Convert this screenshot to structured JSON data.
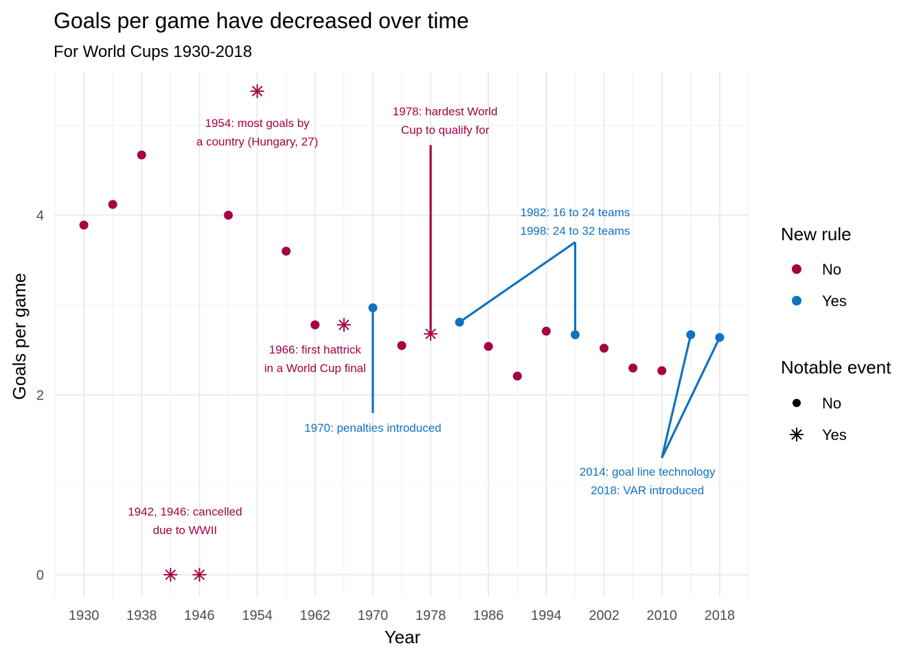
{
  "colors": {
    "no_rule": "#A50044",
    "yes_rule": "#1172C0"
  },
  "chart_data": {
    "type": "scatter",
    "title": "Goals per game have decreased over time",
    "subtitle": "For World Cups 1930-2018",
    "xlabel": "Year",
    "ylabel": "Goals per game",
    "xlim": [
      1926,
      2022
    ],
    "ylim": [
      -0.25,
      5.6
    ],
    "xticks": [
      1930,
      1938,
      1946,
      1954,
      1962,
      1970,
      1978,
      1986,
      1994,
      2002,
      2010,
      2018
    ],
    "yticks": [
      0,
      2,
      4
    ],
    "grid": true,
    "legend_position": "right",
    "legend": {
      "new_rule": {
        "title": "New rule",
        "items": [
          "No",
          "Yes"
        ]
      },
      "notable_event": {
        "title": "Notable event",
        "items": [
          "No",
          "Yes"
        ]
      }
    },
    "points": [
      {
        "year": 1930,
        "goals": 3.89,
        "new_rule": "No",
        "notable": "No"
      },
      {
        "year": 1934,
        "goals": 4.12,
        "new_rule": "No",
        "notable": "No"
      },
      {
        "year": 1938,
        "goals": 4.67,
        "new_rule": "No",
        "notable": "No"
      },
      {
        "year": 1942,
        "goals": 0,
        "new_rule": "No",
        "notable": "Yes"
      },
      {
        "year": 1946,
        "goals": 0,
        "new_rule": "No",
        "notable": "Yes"
      },
      {
        "year": 1950,
        "goals": 4.0,
        "new_rule": "No",
        "notable": "No"
      },
      {
        "year": 1954,
        "goals": 5.38,
        "new_rule": "No",
        "notable": "Yes"
      },
      {
        "year": 1958,
        "goals": 3.6,
        "new_rule": "No",
        "notable": "No"
      },
      {
        "year": 1962,
        "goals": 2.78,
        "new_rule": "No",
        "notable": "No"
      },
      {
        "year": 1966,
        "goals": 2.78,
        "new_rule": "No",
        "notable": "Yes"
      },
      {
        "year": 1970,
        "goals": 2.97,
        "new_rule": "Yes",
        "notable": "No"
      },
      {
        "year": 1974,
        "goals": 2.55,
        "new_rule": "No",
        "notable": "No"
      },
      {
        "year": 1978,
        "goals": 2.68,
        "new_rule": "No",
        "notable": "Yes"
      },
      {
        "year": 1982,
        "goals": 2.81,
        "new_rule": "Yes",
        "notable": "No"
      },
      {
        "year": 1986,
        "goals": 2.54,
        "new_rule": "No",
        "notable": "No"
      },
      {
        "year": 1990,
        "goals": 2.21,
        "new_rule": "No",
        "notable": "No"
      },
      {
        "year": 1994,
        "goals": 2.71,
        "new_rule": "No",
        "notable": "No"
      },
      {
        "year": 1998,
        "goals": 2.67,
        "new_rule": "Yes",
        "notable": "No"
      },
      {
        "year": 2002,
        "goals": 2.52,
        "new_rule": "No",
        "notable": "No"
      },
      {
        "year": 2006,
        "goals": 2.3,
        "new_rule": "No",
        "notable": "No"
      },
      {
        "year": 2010,
        "goals": 2.27,
        "new_rule": "No",
        "notable": "No"
      },
      {
        "year": 2014,
        "goals": 2.67,
        "new_rule": "Yes",
        "notable": "No"
      },
      {
        "year": 2018,
        "goals": 2.64,
        "new_rule": "Yes",
        "notable": "No"
      }
    ],
    "annotations": [
      {
        "lines": [
          "1954: most goals by",
          "a country (Hungary, 27)"
        ],
        "x": 1954,
        "y": 4.98,
        "color": "no_rule"
      },
      {
        "lines": [
          "1978: hardest World",
          "Cup to qualify for"
        ],
        "x": 1980,
        "y": 5.11,
        "color": "no_rule"
      },
      {
        "lines": [
          "1982: 16 to 24 teams",
          "1998: 24 to 32 teams"
        ],
        "x": 1998,
        "y": 3.99,
        "color": "yes_rule"
      },
      {
        "lines": [
          "1966: first hattrick",
          "in a World Cup final"
        ],
        "x": 1962,
        "y": 2.46,
        "color": "no_rule"
      },
      {
        "lines": [
          "1970: penalties introduced"
        ],
        "x": 1970,
        "y": 1.59,
        "color": "yes_rule"
      },
      {
        "lines": [
          "2014: goal line technology",
          "2018: VAR introduced"
        ],
        "x": 2008,
        "y": 1.1,
        "color": "yes_rule"
      },
      {
        "lines": [
          "1942, 1946: cancelled",
          "due to WWII"
        ],
        "x": 1944,
        "y": 0.66,
        "color": "no_rule"
      }
    ],
    "segments": [
      {
        "x1": 1978,
        "y1": 2.68,
        "x2": 1978,
        "y2": 4.78,
        "color": "no_rule"
      },
      {
        "x1": 1970,
        "y1": 2.97,
        "x2": 1970,
        "y2": 1.8,
        "color": "yes_rule"
      },
      {
        "x1": 1982,
        "y1": 2.81,
        "x2": 1998,
        "y2": 3.7,
        "color": "yes_rule"
      },
      {
        "x1": 1998,
        "y1": 3.7,
        "x2": 1998,
        "y2": 2.67,
        "color": "yes_rule"
      },
      {
        "x1": 2010,
        "y1": 1.3,
        "x2": 2014,
        "y2": 2.67,
        "color": "yes_rule"
      },
      {
        "x1": 2010,
        "y1": 1.3,
        "x2": 2018,
        "y2": 2.64,
        "color": "yes_rule"
      }
    ]
  }
}
